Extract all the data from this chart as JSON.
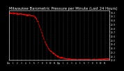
{
  "title": "Milwaukee Barometric Pressure per Minute (Last 24 Hours)",
  "title_fontsize": 3.8,
  "background_color": "#000000",
  "plot_bg_color": "#000000",
  "line_color": "#ff0000",
  "grid_color": "#555555",
  "y_min": 29.0,
  "y_max": 30.25,
  "y_ticks": [
    29.0,
    29.1,
    29.2,
    29.3,
    29.4,
    29.5,
    29.6,
    29.7,
    29.8,
    29.9,
    30.0,
    30.1,
    30.2
  ],
  "num_points": 1440,
  "x_tick_labels": [
    "12a",
    "1",
    "2",
    "3",
    "4",
    "5",
    "6",
    "7",
    "8",
    "9",
    "10",
    "11",
    "12p",
    "1",
    "2",
    "3",
    "4",
    "5",
    "6",
    "7",
    "8",
    "9",
    "10",
    "11"
  ],
  "x_tick_count": 24,
  "tick_color": "#ffffff",
  "text_color": "#ffffff",
  "pressure_points": [
    [
      0,
      30.18
    ],
    [
      60,
      30.17
    ],
    [
      120,
      30.16
    ],
    [
      180,
      30.15
    ],
    [
      240,
      30.13
    ],
    [
      300,
      30.12
    ],
    [
      360,
      30.1
    ],
    [
      390,
      30.05
    ],
    [
      420,
      29.95
    ],
    [
      450,
      29.8
    ],
    [
      480,
      29.65
    ],
    [
      510,
      29.5
    ],
    [
      540,
      29.38
    ],
    [
      570,
      29.28
    ],
    [
      600,
      29.22
    ],
    [
      630,
      29.18
    ],
    [
      660,
      29.14
    ],
    [
      690,
      29.1
    ],
    [
      720,
      29.07
    ],
    [
      750,
      29.05
    ],
    [
      780,
      29.04
    ],
    [
      810,
      29.03
    ],
    [
      840,
      29.02
    ],
    [
      900,
      29.01
    ],
    [
      960,
      29.0
    ],
    [
      1020,
      29.0
    ],
    [
      1080,
      29.0
    ],
    [
      1140,
      29.0
    ],
    [
      1200,
      29.0
    ],
    [
      1260,
      29.0
    ],
    [
      1320,
      29.01
    ],
    [
      1380,
      29.02
    ],
    [
      1440,
      29.02
    ]
  ]
}
